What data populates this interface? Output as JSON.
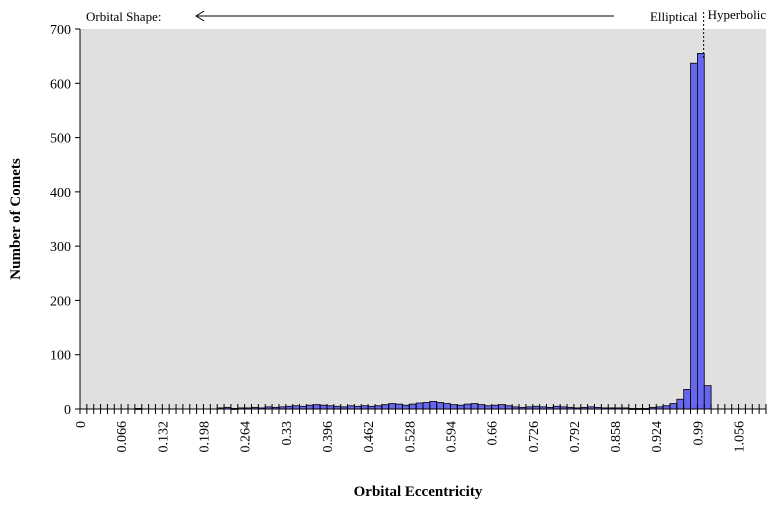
{
  "chart_data": {
    "type": "bar",
    "title": "",
    "xlabel": "Orbital Eccentricity",
    "ylabel": "Number of Comets",
    "ylim": [
      0,
      700
    ],
    "yticks": [
      0,
      100,
      200,
      300,
      400,
      500,
      600,
      700
    ],
    "bin_width": 0.011,
    "x_range": [
      0,
      1.1
    ],
    "xtick_labels": [
      "0",
      "0.066",
      "0.132",
      "0.198",
      "0.264",
      "0.33",
      "0.396",
      "0.462",
      "0.528",
      "0.594",
      "0.66",
      "0.726",
      "0.792",
      "0.858",
      "0.924",
      "0.99",
      "1.056"
    ],
    "bar_color": "#6666ee",
    "plot_background": "#e0e0e0",
    "values": [
      0,
      0,
      0,
      0,
      0,
      0,
      0,
      0,
      1,
      0,
      0,
      0,
      0,
      0,
      0,
      0,
      0,
      0,
      0,
      0,
      2,
      3,
      1,
      2,
      2,
      3,
      2,
      4,
      3,
      4,
      5,
      6,
      5,
      7,
      8,
      7,
      6,
      5,
      4,
      6,
      5,
      6,
      5,
      6,
      8,
      10,
      9,
      7,
      9,
      11,
      12,
      14,
      12,
      10,
      8,
      7,
      9,
      10,
      8,
      6,
      7,
      8,
      6,
      4,
      3,
      4,
      5,
      4,
      3,
      5,
      4,
      3,
      2,
      3,
      4,
      3,
      2,
      2,
      2,
      2,
      1,
      1,
      1,
      3,
      4,
      6,
      10,
      18,
      36,
      637,
      655,
      43,
      0,
      0,
      0,
      0,
      0,
      0,
      0,
      0
    ],
    "annotations": {
      "orbital_shape": "Orbital Shape:",
      "elliptical": "Elliptical",
      "hyperbolic": "Hyperbolic"
    }
  }
}
